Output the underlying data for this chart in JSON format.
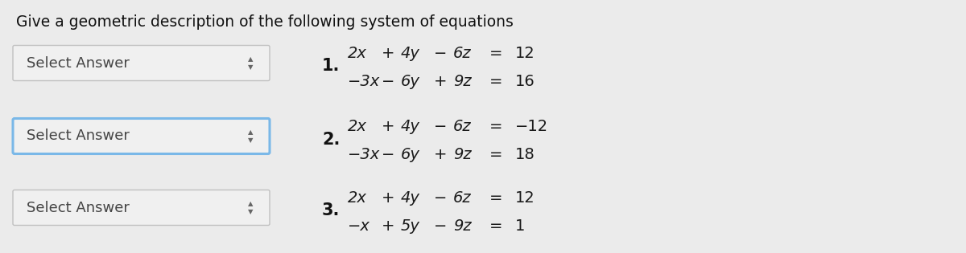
{
  "title": "Give a geometric description of the following system of equations",
  "title_fontsize": 13.5,
  "background_color": "#ebebeb",
  "dropdown_bg_normal": "#f0f0f0",
  "dropdown_bg_highlight": "#f0f0f0",
  "dropdown_border_normal": "#c0c0c0",
  "dropdown_border_highlight": "#7ab8e8",
  "dropdown_text": "Select Answer",
  "dropdown_text_color": "#444444",
  "dropdown_fontsize": 13,
  "number_fontsize": 15,
  "eq_fontsize": 14,
  "items": [
    {
      "number": "1.",
      "eq1_parts": [
        "2x",
        "+",
        "4y",
        "−",
        "6z",
        "=",
        "12"
      ],
      "eq2_parts": [
        "−3x",
        "−",
        "6y",
        "+",
        "9z",
        "=",
        "16"
      ],
      "highlight": false
    },
    {
      "number": "2.",
      "eq1_parts": [
        "2x",
        "+",
        "4y",
        "−",
        "6z",
        "=",
        "−12"
      ],
      "eq2_parts": [
        "−3x",
        "−",
        "6y",
        "+",
        "9z",
        "=",
        "18"
      ],
      "highlight": true
    },
    {
      "number": "3.",
      "eq1_parts": [
        "2x",
        "+",
        "4y",
        "−",
        "6z",
        "=",
        "12"
      ],
      "eq2_parts": [
        "−x",
        "+",
        "5y",
        "−",
        "9z",
        "=",
        "1"
      ],
      "highlight": false
    }
  ]
}
